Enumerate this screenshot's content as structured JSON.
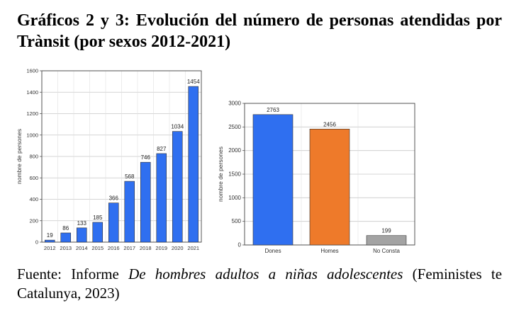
{
  "heading": {
    "title": "Gráficos 2 y 3: Evolución del número de personas atendidas por Trànsit (por sexos 2012-2021)"
  },
  "source": {
    "prefix": "Fuente: Informe",
    "work": "De hombres adultos a niñas adolescentes",
    "suffix": "(Feministes te Catalunya, 2023)"
  },
  "chart_data": [
    {
      "type": "bar",
      "categories": [
        "2012",
        "2013",
        "2014",
        "2015",
        "2016",
        "2017",
        "2018",
        "2019",
        "2020",
        "2021"
      ],
      "values": [
        19,
        86,
        133,
        185,
        366,
        568,
        746,
        827,
        1034,
        1454
      ],
      "title": "",
      "xlabel": "",
      "ylabel": "nombre de persones",
      "ylim": [
        0,
        1600
      ],
      "yticks": [
        0,
        200,
        400,
        600,
        800,
        1000,
        1200,
        1400,
        1600
      ],
      "bar_color": "#2f6ff0",
      "grid": true,
      "legend": "none"
    },
    {
      "type": "bar",
      "categories": [
        "Dones",
        "Homes",
        "No Consta"
      ],
      "values": [
        2763,
        2456,
        199
      ],
      "title": "",
      "xlabel": "",
      "ylabel": "nombre de persones",
      "ylim": [
        0,
        3000
      ],
      "yticks": [
        0,
        500,
        1000,
        1500,
        2000,
        2500,
        3000
      ],
      "bar_colors": [
        "#2f6ff0",
        "#ee7a2a",
        "#a3a3a3"
      ],
      "grid": true,
      "legend": "none"
    }
  ]
}
